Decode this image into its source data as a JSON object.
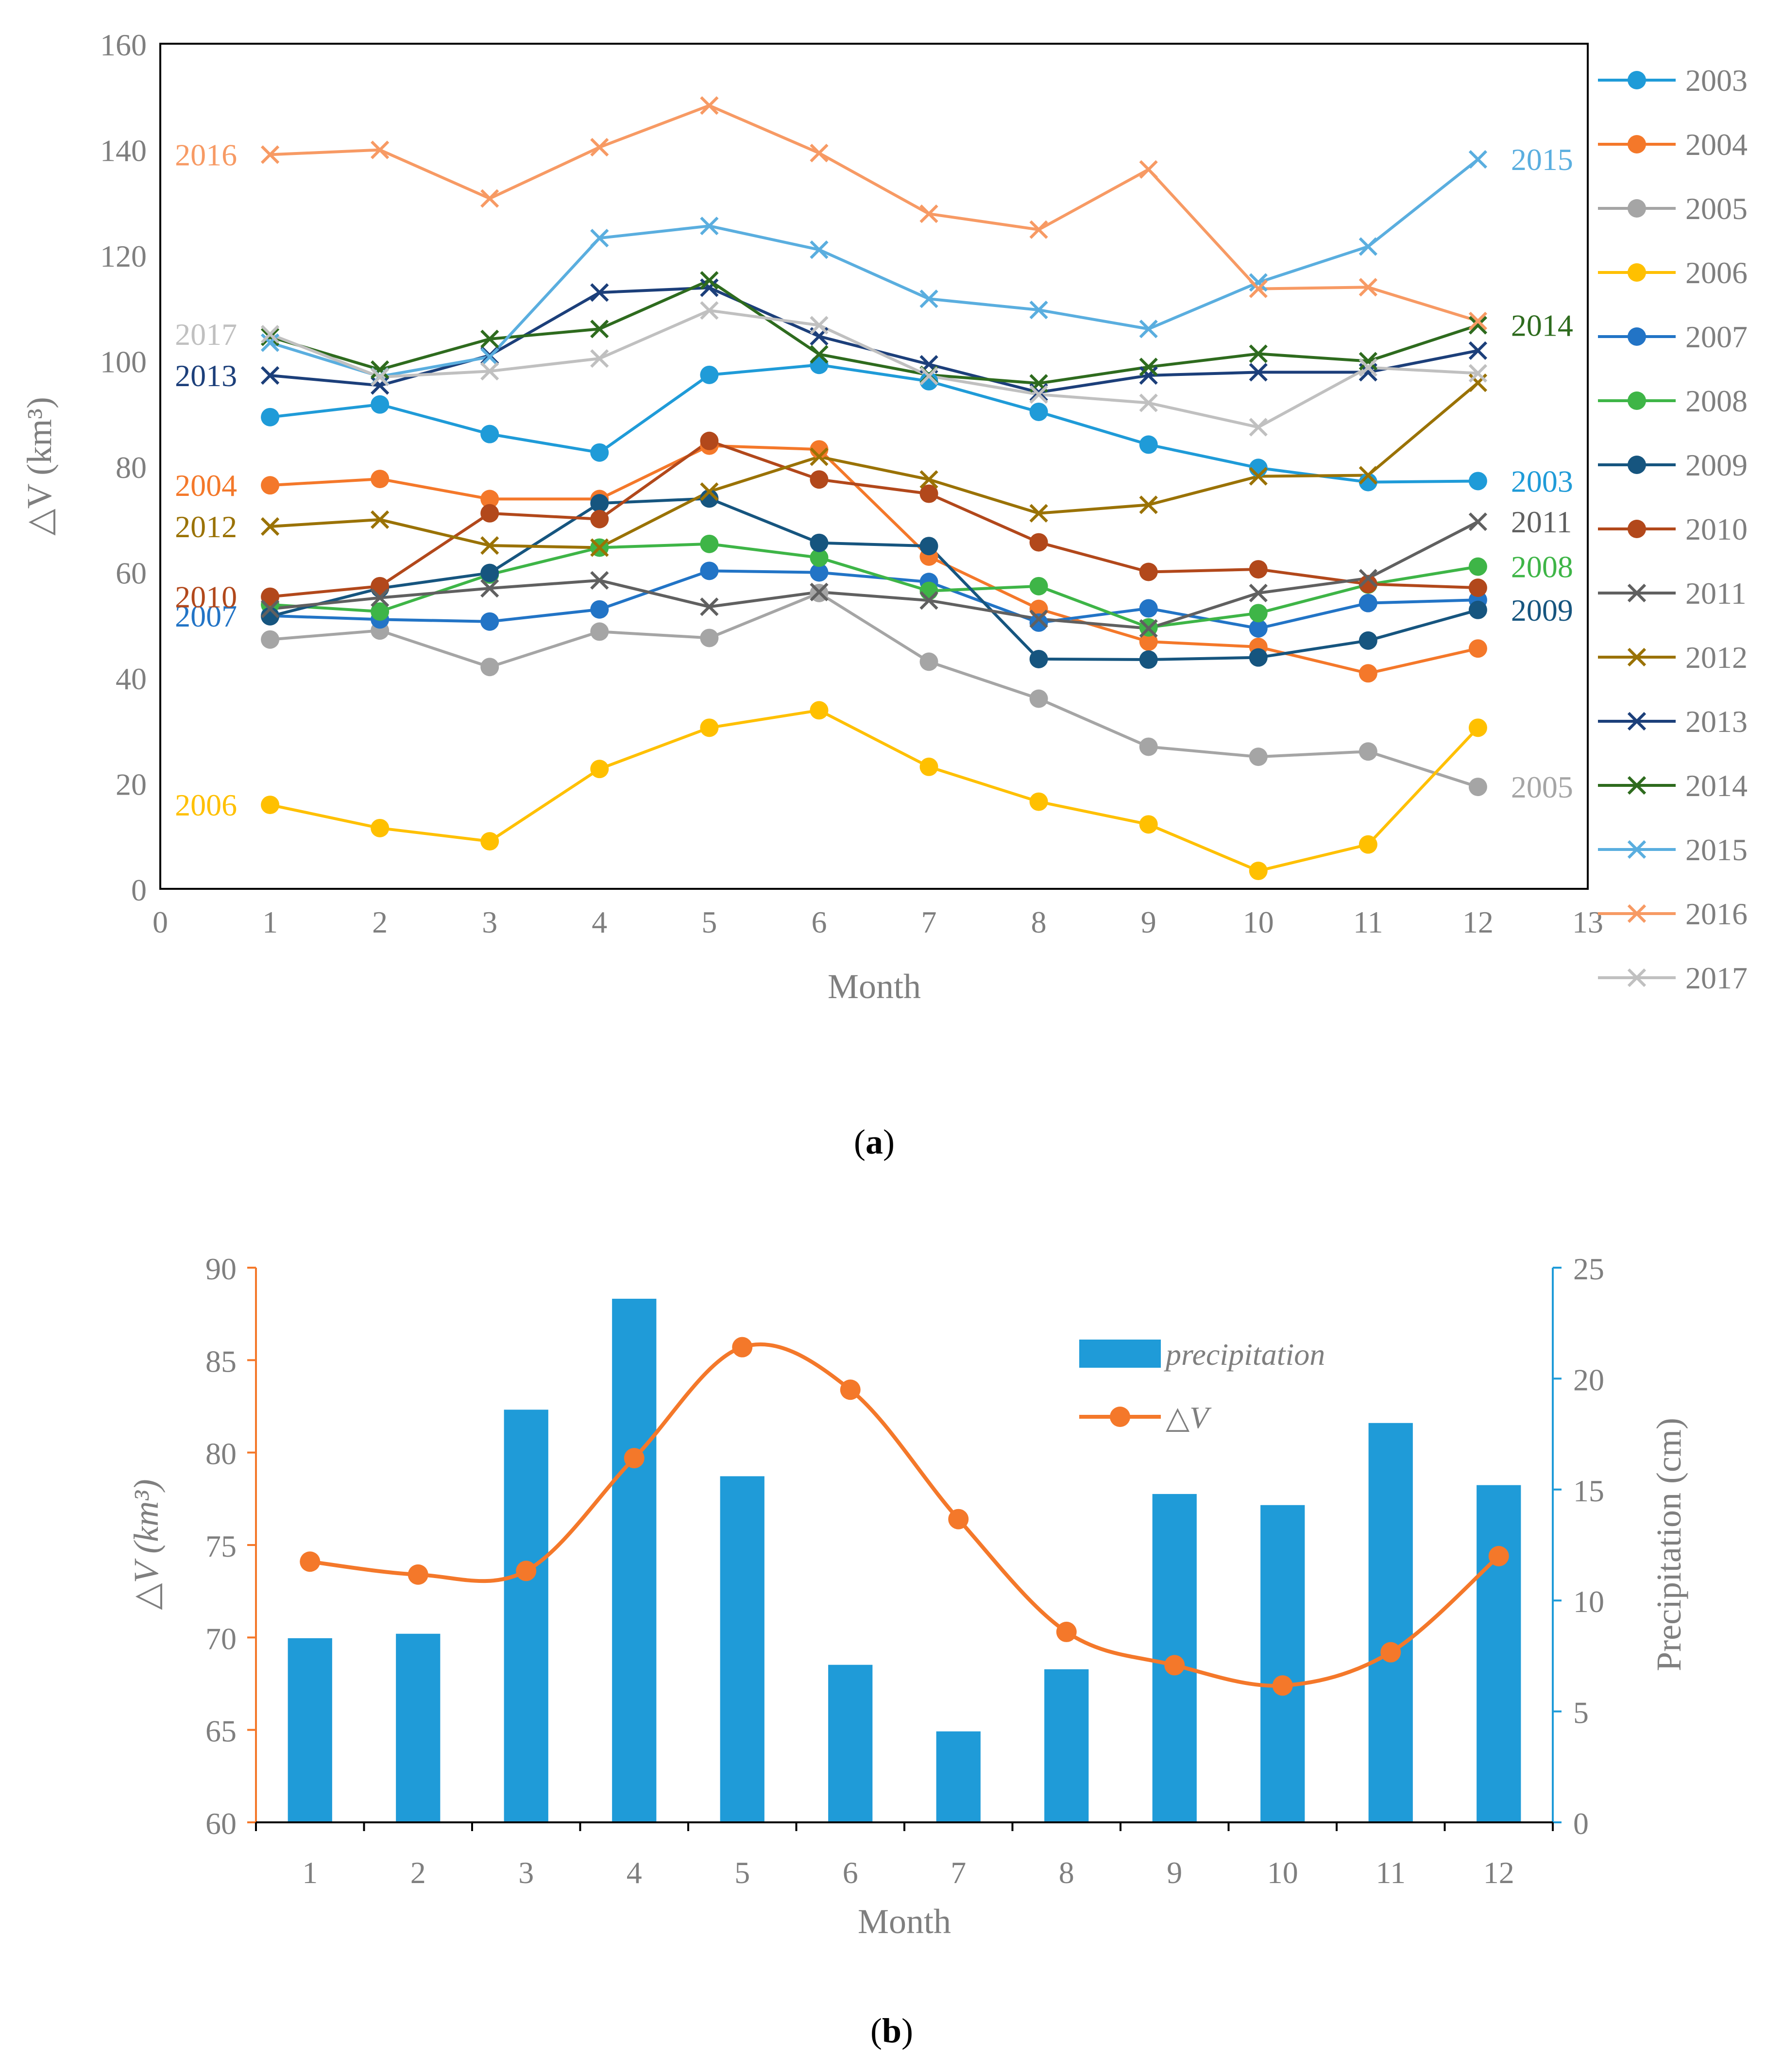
{
  "chart_data": [
    {
      "panel": "a",
      "type": "line",
      "caption_letter": "a",
      "xlabel": "Month",
      "ylabel": "△V (km³)",
      "xlim": [
        0,
        13
      ],
      "ylim": [
        0,
        160
      ],
      "xticks": [
        "0",
        "1",
        "2",
        "3",
        "4",
        "5",
        "6",
        "7",
        "8",
        "9",
        "10",
        "11",
        "12",
        "13"
      ],
      "yticks": [
        "0",
        "20",
        "40",
        "60",
        "80",
        "100",
        "120",
        "140",
        "160"
      ],
      "x": [
        1,
        2,
        3,
        4,
        5,
        6,
        7,
        8,
        9,
        10,
        11,
        12
      ],
      "legend_position": "right",
      "series": [
        {
          "name": "2003",
          "marker": "circle",
          "color": "#1f9bd8",
          "label_text": "2003",
          "label_side": "right",
          "values": [
            89.3,
            91.7,
            86.1,
            82.6,
            97.3,
            99.2,
            96.1,
            90.3,
            84.1,
            79.7,
            77.0,
            77.2
          ]
        },
        {
          "name": "2004",
          "marker": "circle",
          "color": "#f4782a",
          "label_text": "2004",
          "label_side": "left",
          "values": [
            76.4,
            77.6,
            73.8,
            73.8,
            83.9,
            83.2,
            62.9,
            53.0,
            46.8,
            45.8,
            40.8,
            45.5
          ]
        },
        {
          "name": "2005",
          "marker": "circle",
          "color": "#a5a5a5",
          "label_text": "2005",
          "label_side": "right",
          "values": [
            47.2,
            48.9,
            42.0,
            48.7,
            47.5,
            56.0,
            43.0,
            36.0,
            26.9,
            25.0,
            26.0,
            19.3
          ]
        },
        {
          "name": "2006",
          "marker": "circle",
          "color": "#ffc000",
          "label_text": "2006",
          "label_side": "left",
          "values": [
            15.9,
            11.5,
            9.0,
            22.7,
            30.5,
            33.8,
            23.1,
            16.5,
            12.2,
            3.4,
            8.4,
            30.5
          ]
        },
        {
          "name": "2007",
          "marker": "circle",
          "color": "#2274c6",
          "label_text": "2007",
          "label_side": "left",
          "values": [
            51.7,
            51.0,
            50.6,
            52.9,
            60.2,
            59.9,
            58.1,
            50.4,
            53.1,
            49.3,
            54.1,
            54.7
          ]
        },
        {
          "name": "2008",
          "marker": "circle",
          "color": "#3eb547",
          "label_text": "2008",
          "label_side": "right",
          "values": [
            53.8,
            52.5,
            59.5,
            64.6,
            65.3,
            62.7,
            56.4,
            57.3,
            49.5,
            52.2,
            57.6,
            61.0
          ]
        },
        {
          "name": "2009",
          "marker": "circle",
          "color": "#16557f",
          "label_text": "2009",
          "label_side": "right",
          "values": [
            51.6,
            56.9,
            59.8,
            73.0,
            73.9,
            65.5,
            64.9,
            43.5,
            43.4,
            43.8,
            47.0,
            52.8
          ]
        },
        {
          "name": "2010",
          "marker": "circle",
          "color": "#b2481b",
          "label_text": "2010",
          "label_side": "left",
          "values": [
            55.3,
            57.3,
            71.1,
            70.0,
            84.8,
            77.5,
            74.8,
            65.6,
            60.0,
            60.5,
            57.7,
            57.0
          ]
        },
        {
          "name": "2011",
          "marker": "x",
          "color": "#606060",
          "label_text": "2011",
          "label_side": "right",
          "values": [
            53.0,
            55.1,
            56.9,
            58.4,
            53.4,
            56.2,
            54.6,
            51.1,
            49.3,
            56.0,
            58.8,
            69.5
          ]
        },
        {
          "name": "2012",
          "marker": "x",
          "color": "#9a7204",
          "label_text": "2012",
          "label_side": "left",
          "values": [
            68.6,
            69.9,
            65.0,
            64.6,
            75.2,
            81.8,
            77.5,
            71.1,
            72.7,
            78.1,
            78.3,
            95.8
          ]
        },
        {
          "name": "2013",
          "marker": "x",
          "color": "#1c3f7a",
          "label_text": "2013",
          "label_side": "left",
          "values": [
            97.2,
            95.3,
            101.0,
            112.9,
            113.8,
            104.6,
            99.3,
            94.0,
            97.2,
            97.8,
            97.8,
            101.9
          ]
        },
        {
          "name": "2014",
          "marker": "x",
          "color": "#2e6b1e",
          "label_text": "2014",
          "label_side": "right",
          "values": [
            104.5,
            98.3,
            104.1,
            106.0,
            115.2,
            101.2,
            97.3,
            95.7,
            98.8,
            101.3,
            99.9,
            106.7
          ]
        },
        {
          "name": "2015",
          "marker": "x",
          "color": "#5aaedf",
          "label_text": "2015",
          "label_side": "right",
          "values": [
            103.4,
            97.0,
            100.7,
            123.2,
            125.5,
            121.0,
            111.7,
            109.6,
            106.0,
            114.8,
            121.6,
            138.1
          ]
        },
        {
          "name": "2016",
          "marker": "x",
          "color": "#f79a64",
          "label_text": "2016",
          "label_side": "left",
          "values": [
            139.0,
            139.9,
            130.7,
            140.4,
            148.3,
            139.3,
            127.8,
            124.8,
            136.2,
            113.6,
            113.9,
            107.5
          ]
        },
        {
          "name": "2017",
          "marker": "x",
          "color": "#c0c0c0",
          "label_text": "2017",
          "label_side": "left",
          "values": [
            105.0,
            96.9,
            98.0,
            100.4,
            109.5,
            106.7,
            97.1,
            93.6,
            92.0,
            87.4,
            98.7,
            97.6
          ]
        }
      ]
    },
    {
      "panel": "b",
      "type": "bar+line",
      "caption_letter": "b",
      "xlabel": "Month",
      "ylabel_left": "△V (km³)",
      "ylabel_right": "Precipitation (cm)",
      "categories": [
        "1",
        "2",
        "3",
        "4",
        "5",
        "6",
        "7",
        "8",
        "9",
        "10",
        "11",
        "12"
      ],
      "ylim_left": [
        60,
        90
      ],
      "ylim_right": [
        0,
        25
      ],
      "yticks_left": [
        "60",
        "65",
        "70",
        "75",
        "80",
        "85",
        "90"
      ],
      "yticks_right": [
        "0",
        "5",
        "10",
        "15",
        "20",
        "25"
      ],
      "legend_position": "top-right",
      "series": [
        {
          "name": "precipitation",
          "type": "bar",
          "axis": "right",
          "color": "#1f9bd8",
          "values": [
            8.3,
            8.5,
            18.6,
            23.6,
            15.6,
            7.1,
            4.1,
            6.9,
            14.8,
            14.3,
            18.0,
            15.2
          ]
        },
        {
          "name": "△V",
          "type": "line",
          "axis": "left",
          "color": "#f4782a",
          "values": [
            74.1,
            73.4,
            73.6,
            79.7,
            85.7,
            83.4,
            76.4,
            70.3,
            68.5,
            67.4,
            69.2,
            74.4
          ]
        }
      ]
    }
  ]
}
